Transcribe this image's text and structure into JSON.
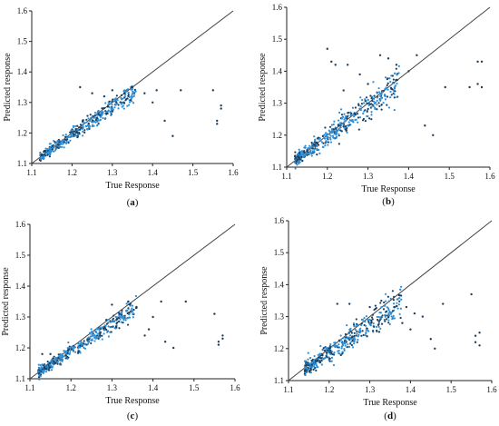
{
  "figure": {
    "colors": {
      "axis": "#222222",
      "diagonal": "#444444",
      "point_light": "#2f8fd6",
      "point_dark": "#1d3f5e"
    }
  },
  "chart_data": [
    {
      "panel_label": "(a)",
      "type": "scatter",
      "xlabel": "True Response",
      "ylabel": "Predicted response",
      "xlim": [
        1.1,
        1.6
      ],
      "ylim": [
        1.1,
        1.6
      ],
      "xticks": [
        "1.1",
        "1.2",
        "1.3",
        "1.4",
        "1.5",
        "1.6"
      ],
      "yticks": [
        "1.1",
        "1.2",
        "1.3",
        "1.4",
        "1.5",
        "1.6"
      ],
      "reference_line": [
        [
          1.1,
          1.1
        ],
        [
          1.6,
          1.6
        ]
      ],
      "cluster": {
        "x_range": [
          1.12,
          1.36
        ],
        "slope": 0.92,
        "spread": 0.012,
        "count": 420
      },
      "points": [
        [
          1.3,
          1.34
        ],
        [
          1.33,
          1.33
        ],
        [
          1.35,
          1.35
        ],
        [
          1.38,
          1.33
        ],
        [
          1.4,
          1.3
        ],
        [
          1.41,
          1.34
        ],
        [
          1.43,
          1.24
        ],
        [
          1.45,
          1.19
        ],
        [
          1.47,
          1.34
        ],
        [
          1.55,
          1.34
        ],
        [
          1.56,
          1.24
        ],
        [
          1.56,
          1.23
        ],
        [
          1.57,
          1.29
        ],
        [
          1.57,
          1.28
        ],
        [
          1.22,
          1.35
        ],
        [
          1.25,
          1.33
        ],
        [
          1.28,
          1.32
        ]
      ]
    },
    {
      "panel_label": "(b)",
      "type": "scatter",
      "xlabel": "True Response",
      "ylabel": "Predicted response",
      "xlim": [
        1.1,
        1.6
      ],
      "ylim": [
        1.1,
        1.6
      ],
      "xticks": [
        "1.1",
        "1.2",
        "1.3",
        "1.4",
        "1.5",
        "1.6"
      ],
      "yticks": [
        "1.1",
        "1.2",
        "1.3",
        "1.4",
        "1.5",
        "1.6"
      ],
      "reference_line": [
        [
          1.1,
          1.1
        ],
        [
          1.6,
          1.6
        ]
      ],
      "cluster": {
        "x_range": [
          1.12,
          1.38
        ],
        "slope": 0.95,
        "spread": 0.02,
        "count": 440
      },
      "points": [
        [
          1.2,
          1.47
        ],
        [
          1.21,
          1.43
        ],
        [
          1.22,
          1.42
        ],
        [
          1.25,
          1.42
        ],
        [
          1.33,
          1.45
        ],
        [
          1.35,
          1.44
        ],
        [
          1.37,
          1.42
        ],
        [
          1.4,
          1.4
        ],
        [
          1.42,
          1.45
        ],
        [
          1.44,
          1.23
        ],
        [
          1.46,
          1.2
        ],
        [
          1.49,
          1.35
        ],
        [
          1.55,
          1.35
        ],
        [
          1.57,
          1.36
        ],
        [
          1.57,
          1.43
        ],
        [
          1.58,
          1.43
        ],
        [
          1.58,
          1.35
        ],
        [
          1.3,
          1.36
        ],
        [
          1.28,
          1.39
        ],
        [
          1.24,
          1.34
        ]
      ]
    },
    {
      "panel_label": "(c)",
      "type": "scatter",
      "xlabel": "True Response",
      "ylabel": "Predicted response",
      "xlim": [
        1.1,
        1.6
      ],
      "ylim": [
        1.1,
        1.6
      ],
      "xticks": [
        "1.1",
        "1.2",
        "1.3",
        "1.4",
        "1.5",
        "1.6"
      ],
      "yticks": [
        "1.1",
        "1.2",
        "1.3",
        "1.4",
        "1.5",
        "1.6"
      ],
      "reference_line": [
        [
          1.1,
          1.1
        ],
        [
          1.6,
          1.6
        ]
      ],
      "cluster": {
        "x_range": [
          1.12,
          1.36
        ],
        "slope": 0.88,
        "spread": 0.012,
        "count": 420
      },
      "points": [
        [
          1.13,
          1.18
        ],
        [
          1.15,
          1.18
        ],
        [
          1.3,
          1.34
        ],
        [
          1.34,
          1.35
        ],
        [
          1.36,
          1.33
        ],
        [
          1.39,
          1.26
        ],
        [
          1.42,
          1.35
        ],
        [
          1.43,
          1.22
        ],
        [
          1.45,
          1.2
        ],
        [
          1.48,
          1.35
        ],
        [
          1.55,
          1.31
        ],
        [
          1.56,
          1.22
        ],
        [
          1.57,
          1.24
        ],
        [
          1.57,
          1.23
        ],
        [
          1.56,
          1.21
        ],
        [
          1.4,
          1.3
        ],
        [
          1.38,
          1.24
        ]
      ]
    },
    {
      "panel_label": "(d)",
      "type": "scatter",
      "xlabel": "True Response",
      "ylabel": "Predicted response",
      "xlim": [
        1.1,
        1.6
      ],
      "ylim": [
        1.1,
        1.6
      ],
      "xticks": [
        "1.1",
        "1.2",
        "1.3",
        "1.4",
        "1.5",
        "1.6"
      ],
      "yticks": [
        "1.1",
        "1.2",
        "1.3",
        "1.4",
        "1.5",
        "1.6"
      ],
      "reference_line": [
        [
          1.1,
          1.1
        ],
        [
          1.6,
          1.6
        ]
      ],
      "cluster": {
        "x_range": [
          1.14,
          1.38
        ],
        "slope": 0.85,
        "spread": 0.018,
        "count": 440
      },
      "points": [
        [
          1.22,
          1.34
        ],
        [
          1.25,
          1.34
        ],
        [
          1.3,
          1.33
        ],
        [
          1.36,
          1.33
        ],
        [
          1.39,
          1.33
        ],
        [
          1.41,
          1.31
        ],
        [
          1.43,
          1.3
        ],
        [
          1.45,
          1.23
        ],
        [
          1.46,
          1.2
        ],
        [
          1.48,
          1.34
        ],
        [
          1.55,
          1.37
        ],
        [
          1.56,
          1.24
        ],
        [
          1.56,
          1.22
        ],
        [
          1.57,
          1.25
        ],
        [
          1.57,
          1.21
        ],
        [
          1.4,
          1.26
        ],
        [
          1.38,
          1.28
        ]
      ]
    }
  ]
}
